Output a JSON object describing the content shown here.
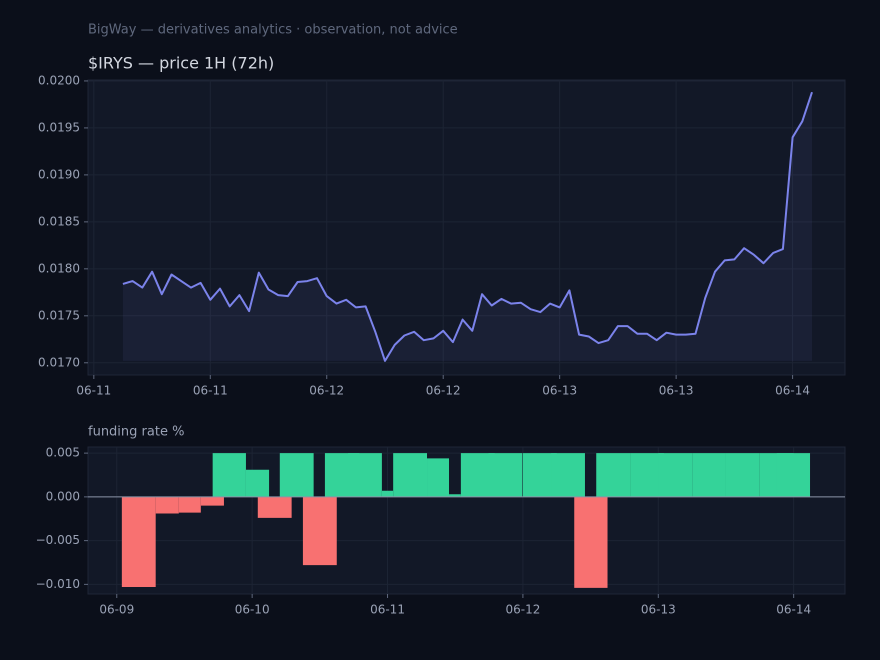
{
  "header": {
    "title": "BigWay — derivatives analytics · observation, not advice"
  },
  "chart_data": [
    {
      "type": "line",
      "title": "$IRYS — price 1H (72h)",
      "color": "#7b83eb",
      "fill": true,
      "grid": true,
      "values": [
        0.01784,
        0.01787,
        0.0178,
        0.01797,
        0.01773,
        0.01794,
        0.01787,
        0.0178,
        0.01785,
        0.01767,
        0.01779,
        0.0176,
        0.01772,
        0.01755,
        0.01796,
        0.01778,
        0.01772,
        0.01771,
        0.01786,
        0.01787,
        0.0179,
        0.01771,
        0.01763,
        0.01767,
        0.01759,
        0.0176,
        0.01733,
        0.01702,
        0.01719,
        0.01729,
        0.01733,
        0.01724,
        0.01726,
        0.01734,
        0.01722,
        0.01746,
        0.01734,
        0.01773,
        0.01761,
        0.01768,
        0.01763,
        0.01764,
        0.01757,
        0.01754,
        0.01763,
        0.01759,
        0.01777,
        0.0173,
        0.01728,
        0.01721,
        0.01724,
        0.01739,
        0.01739,
        0.01731,
        0.01731,
        0.01724,
        0.01732,
        0.0173,
        0.0173,
        0.01731,
        0.01769,
        0.01797,
        0.01809,
        0.0181,
        0.01822,
        0.01815,
        0.01806,
        0.01817,
        0.01821,
        0.0194,
        0.01957,
        0.01988
      ],
      "ylim": [
        0.01687,
        0.02001
      ],
      "yticks": [
        {
          "value": 0.017,
          "label": "0.0170"
        },
        0.0175,
        {
          "value": 0.018,
          "label": "0.0180"
        },
        0.0185,
        {
          "value": 0.019,
          "label": "0.0190"
        },
        0.0195,
        {
          "value": 0.02,
          "label": "0.0200"
        }
      ],
      "xlim": [
        -3.6,
        74.4
      ],
      "xticks": [
        {
          "value": -3,
          "label": "06-11"
        },
        {
          "value": 9,
          "label": "06-11"
        },
        {
          "value": 21,
          "label": "06-12"
        },
        {
          "value": 33,
          "label": "06-12"
        },
        {
          "value": 45,
          "label": "06-13"
        },
        {
          "value": 57,
          "label": "06-13"
        },
        {
          "value": 69,
          "label": "06-14"
        }
      ]
    },
    {
      "type": "bar",
      "title": "funding rate %",
      "positive_color": "#34d399",
      "negative_color": "#f87171",
      "grid": true,
      "x_start": [
        0.9,
        6.9,
        11.0,
        14.9,
        17.0,
        22.9,
        25.0,
        28.9,
        33.0,
        36.9,
        41.0,
        47.0,
        49.0,
        55.0,
        58.9,
        61.0,
        65.9,
        72.0,
        77.0,
        81.1,
        85.0,
        91.0,
        96.0,
        102.0,
        108.0,
        114.0,
        117.0
      ],
      "x_end": [
        6.9,
        11.0,
        14.9,
        19.0,
        22.9,
        27.0,
        31.0,
        34.9,
        39.0,
        43.0,
        47.0,
        49.0,
        55.0,
        58.9,
        61.0,
        67.0,
        71.9,
        78.0,
        83.0,
        87.0,
        91.0,
        97.0,
        102.0,
        108.0,
        114.0,
        120.0,
        122.9
      ],
      "values": [
        -0.0103,
        -0.0019,
        -0.0018,
        -0.001,
        0.005,
        0.0031,
        -0.0024,
        0.005,
        -0.0078,
        0.005,
        0.005,
        0.0007,
        0.005,
        0.0044,
        0.0003,
        0.005,
        0.005,
        0.005,
        0.005,
        -0.0104,
        0.005,
        0.005,
        0.005,
        0.005,
        0.005,
        0.005,
        0.005
      ],
      "ylim": [
        -0.0111,
        0.0057
      ],
      "yticks": [
        {
          "value": -0.01,
          "label": "−0.010"
        },
        {
          "value": -0.005,
          "label": "−0.005"
        },
        {
          "value": 0,
          "label": "0.000"
        },
        0.005
      ],
      "xlim": [
        -5.1,
        129.1
      ],
      "xticks": [
        {
          "value": 0,
          "label": "06-09"
        },
        {
          "value": 24,
          "label": "06-10"
        },
        {
          "value": 48,
          "label": "06-11"
        },
        {
          "value": 72,
          "label": "06-12"
        },
        {
          "value": 96,
          "label": "06-13"
        },
        {
          "value": 120,
          "label": "06-14"
        }
      ]
    }
  ]
}
